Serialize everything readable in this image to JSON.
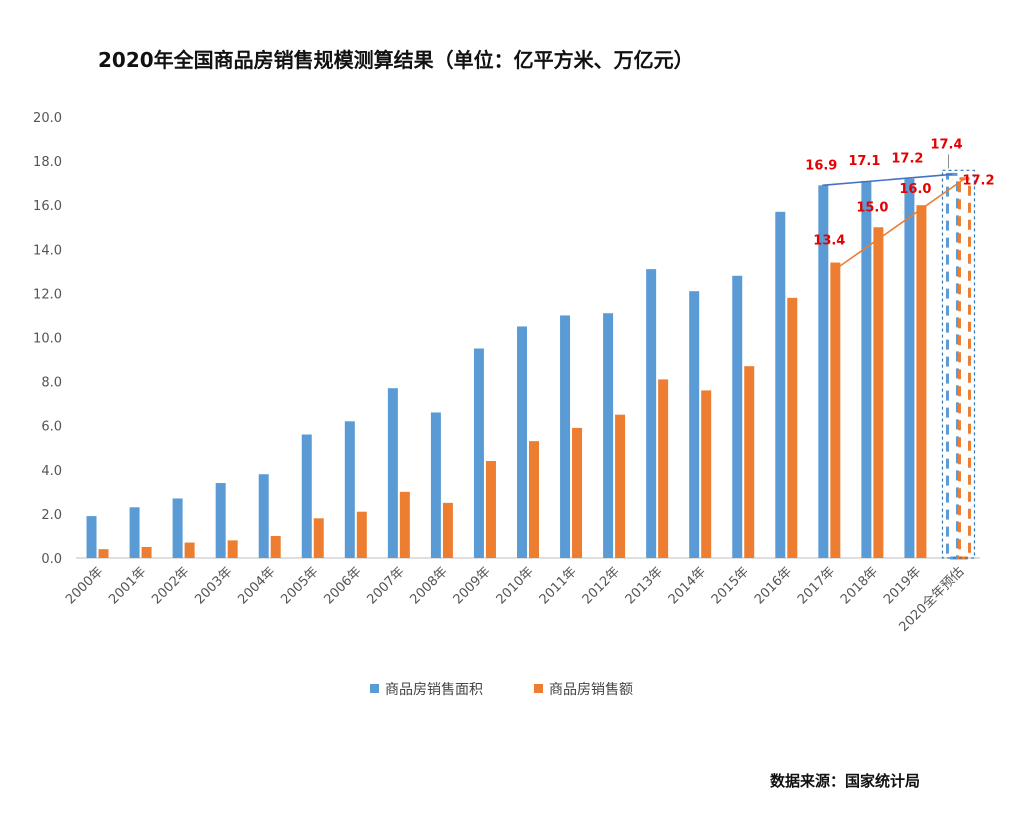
{
  "header": {
    "title": "2020年全国商品房销售规模测算结果（单位：亿平方米、万亿元）"
  },
  "footer": {
    "source": "数据来源：国家统计局"
  },
  "chart_data": {
    "type": "bar",
    "title": "2020年全国商品房销售规模测算结果（单位：亿平方米、万亿元）",
    "xlabel": "",
    "ylabel": "",
    "ylim": [
      0,
      20
    ],
    "yticks": [
      "0.0",
      "2.0",
      "4.0",
      "6.0",
      "8.0",
      "10.0",
      "12.0",
      "14.0",
      "16.0",
      "18.0",
      "20.0"
    ],
    "grid": false,
    "legend_position": "bottom",
    "categories": [
      "2000年",
      "2001年",
      "2002年",
      "2003年",
      "2004年",
      "2005年",
      "2006年",
      "2007年",
      "2008年",
      "2009年",
      "2010年",
      "2011年",
      "2012年",
      "2013年",
      "2014年",
      "2015年",
      "2016年",
      "2017年",
      "2018年",
      "2019年",
      "2020全年预估"
    ],
    "series": [
      {
        "name": "商品房销售面积",
        "color": "#5b9bd5",
        "values": [
          1.9,
          2.3,
          2.7,
          3.4,
          3.8,
          5.6,
          6.2,
          7.7,
          6.6,
          9.5,
          10.5,
          11.0,
          11.1,
          13.1,
          12.1,
          12.8,
          15.7,
          16.9,
          17.1,
          17.2,
          17.4
        ]
      },
      {
        "name": "商品房销售额",
        "color": "#ed7d31",
        "values": [
          0.4,
          0.5,
          0.7,
          0.8,
          1.0,
          1.8,
          2.1,
          3.0,
          2.5,
          4.4,
          5.3,
          5.9,
          6.5,
          8.1,
          7.6,
          8.7,
          11.8,
          13.4,
          15.0,
          16.0,
          17.2
        ]
      }
    ],
    "data_labels": [
      {
        "series": 0,
        "index": 17,
        "text": "16.9"
      },
      {
        "series": 0,
        "index": 18,
        "text": "17.1"
      },
      {
        "series": 0,
        "index": 19,
        "text": "17.2"
      },
      {
        "series": 0,
        "index": 20,
        "text": "17.4"
      },
      {
        "series": 1,
        "index": 17,
        "text": "13.4"
      },
      {
        "series": 1,
        "index": 18,
        "text": "15.0"
      },
      {
        "series": 1,
        "index": 19,
        "text": "16.0"
      },
      {
        "series": 1,
        "index": 20,
        "text": "17.2"
      }
    ],
    "forecast_index": 20,
    "trend_lines": [
      {
        "series": 0,
        "from_index": 17,
        "to_index": 20
      },
      {
        "series": 1,
        "from_index": 17,
        "to_index": 20
      }
    ]
  }
}
